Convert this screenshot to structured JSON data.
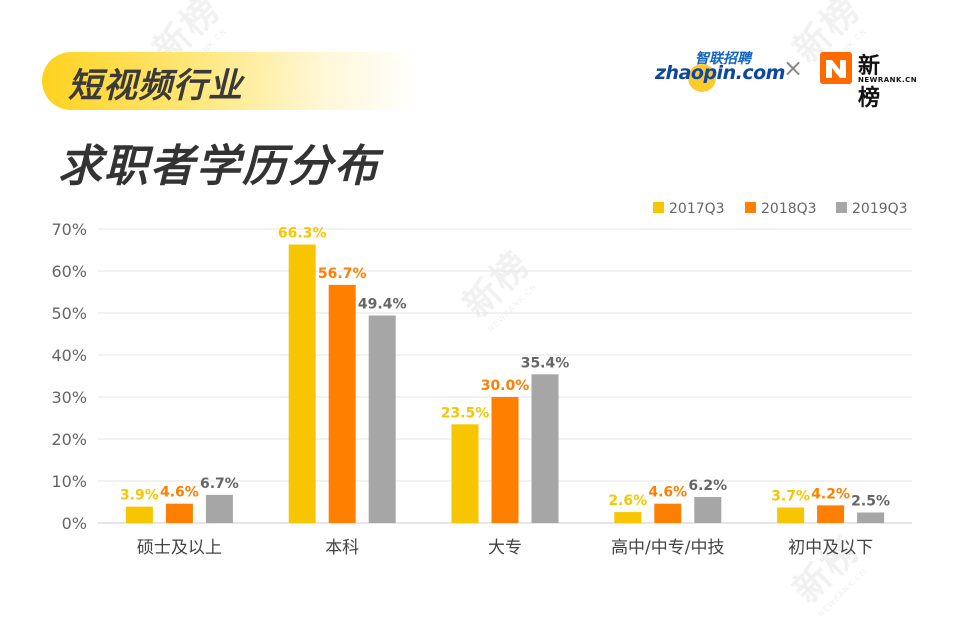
{
  "header": {
    "sector": "短视频行业",
    "title": "求职者学历分布"
  },
  "logos": {
    "zhaopin_cn": "智联招聘",
    "zhaopin_en": "zhaopin.com",
    "separator": "×",
    "newrank_cn": "新榜",
    "newrank_en": "NEWRANK.CN"
  },
  "watermark": {
    "text": "新榜",
    "sub": "NEWRANK.CN"
  },
  "chart_data": {
    "type": "bar",
    "categories": [
      "硕士及以上",
      "本科",
      "大专",
      "高中/中专/中技",
      "初中及以下"
    ],
    "series": [
      {
        "name": "2017Q3",
        "color": "#f7c600",
        "values": [
          3.9,
          66.3,
          23.5,
          2.6,
          3.7
        ]
      },
      {
        "name": "2018Q3",
        "color": "#ff7f00",
        "values": [
          4.6,
          56.7,
          30.0,
          4.6,
          4.2
        ]
      },
      {
        "name": "2019Q3",
        "color": "#a6a6a6",
        "values": [
          6.7,
          49.4,
          35.4,
          6.2,
          2.5
        ]
      }
    ],
    "value_labels": [
      [
        "3.9%",
        "66.3%",
        "23.5%",
        "2.6%",
        "3.7%"
      ],
      [
        "4.6%",
        "56.7%",
        "30.0%",
        "4.6%",
        "4.2%"
      ],
      [
        "6.7%",
        "49.4%",
        "35.4%",
        "6.2%",
        "2.5%"
      ]
    ],
    "label_colors": [
      "#f7c600",
      "#ff7f00",
      "#666666"
    ],
    "yticks": [
      "0%",
      "10%",
      "20%",
      "30%",
      "40%",
      "50%",
      "60%",
      "70%"
    ],
    "ylim": [
      0,
      70
    ],
    "unit": "%",
    "grid": true,
    "legend_position": "top-right"
  }
}
